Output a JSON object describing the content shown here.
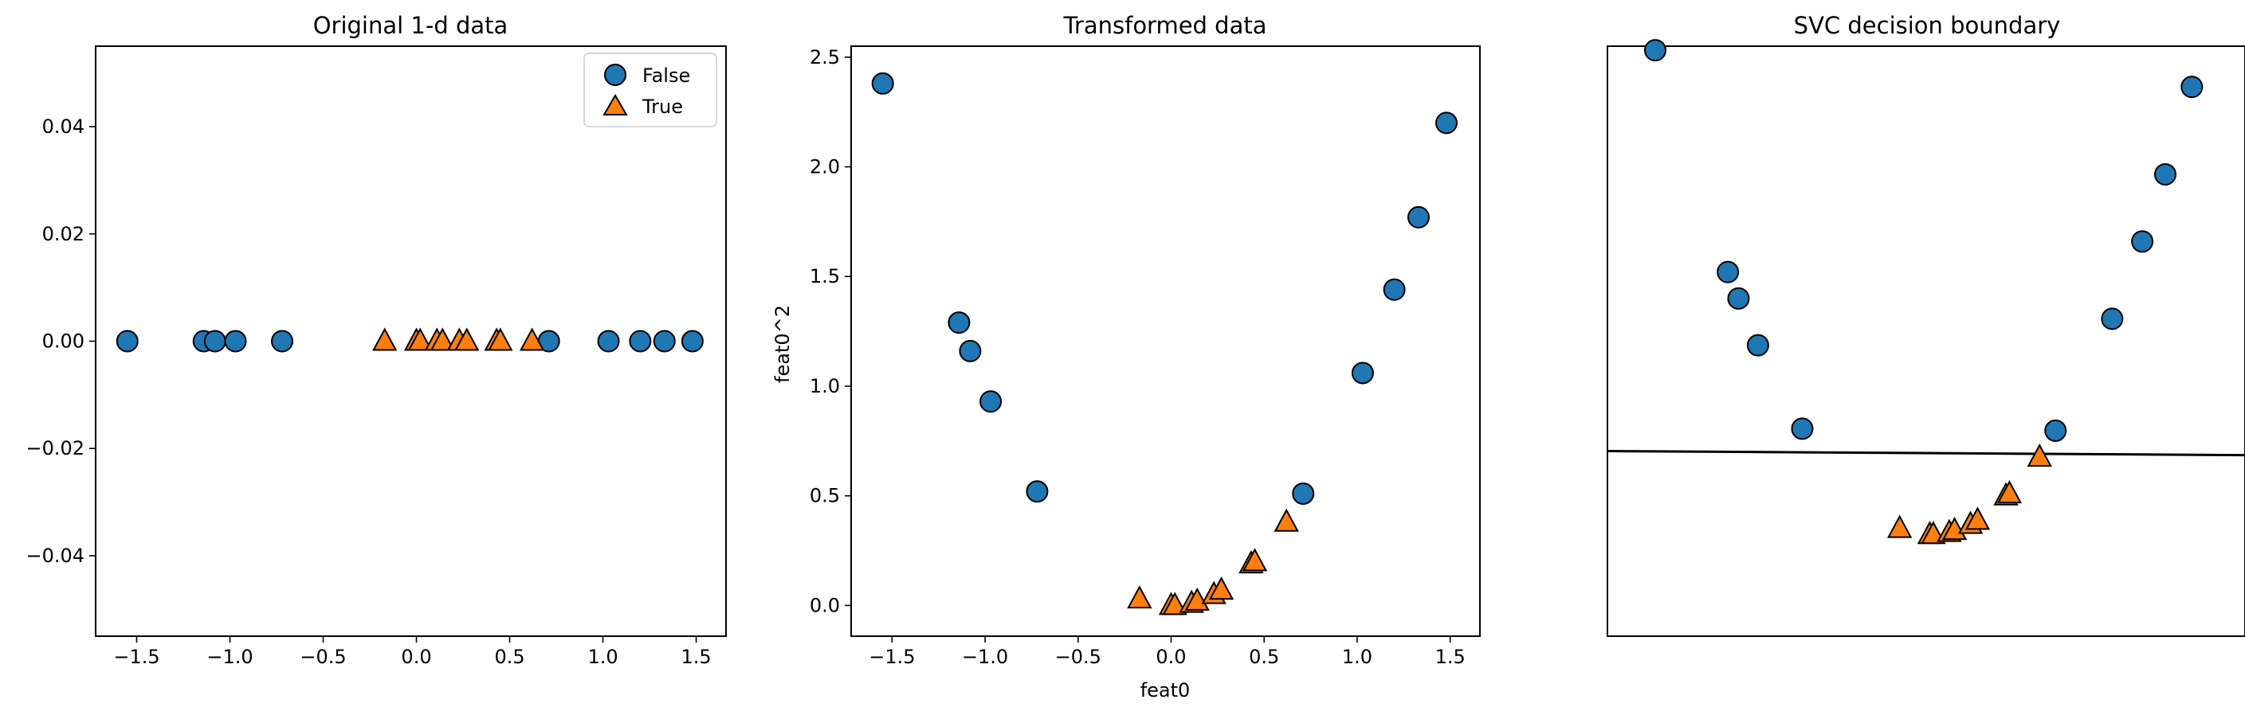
{
  "charts": {
    "original": {
      "title": "Original 1-d data",
      "legend": {
        "false_label": "False",
        "true_label": "True"
      }
    },
    "transformed": {
      "title": "Transformed data",
      "xlabel": "feat0",
      "ylabel": "feat0^2"
    },
    "svc": {
      "title": "SVC decision boundary"
    }
  },
  "chart_data": [
    {
      "type": "scatter",
      "title": "Original 1-d data",
      "xlabel": "",
      "ylabel": "",
      "xlim": [
        -1.72,
        1.66
      ],
      "ylim": [
        -0.055,
        0.055
      ],
      "xticks": [
        -1.5,
        -1.0,
        -0.5,
        0.0,
        0.5,
        1.0,
        1.5
      ],
      "xtick_labels": [
        "−1.5",
        "−1.0",
        "−0.5",
        "0.0",
        "0.5",
        "1.0",
        "1.5"
      ],
      "yticks": [
        -0.04,
        -0.02,
        0.0,
        0.02,
        0.04
      ],
      "ytick_labels": [
        "−0.04",
        "−0.02",
        "0.00",
        "0.02",
        "0.04"
      ],
      "legend_position": "top-right",
      "series": [
        {
          "name": "False",
          "marker": "circle",
          "color": "#1f77b4",
          "x": [
            -1.55,
            -1.14,
            -1.08,
            -0.97,
            -0.72,
            0.71,
            1.03,
            1.2,
            1.33,
            1.48
          ],
          "y": [
            0,
            0,
            0,
            0,
            0,
            0,
            0,
            0,
            0,
            0
          ]
        },
        {
          "name": "True",
          "marker": "triangle",
          "color": "#ff7f0e",
          "x": [
            -0.17,
            0.0,
            0.02,
            0.11,
            0.14,
            0.23,
            0.27,
            0.43,
            0.45,
            0.62
          ],
          "y": [
            0,
            0,
            0,
            0,
            0,
            0,
            0,
            0,
            0,
            0
          ]
        }
      ]
    },
    {
      "type": "scatter",
      "title": "Transformed data",
      "xlabel": "feat0",
      "ylabel": "feat0^2",
      "xlim": [
        -1.72,
        1.66
      ],
      "ylim": [
        -0.14,
        2.55
      ],
      "xticks": [
        -1.5,
        -1.0,
        -0.5,
        0.0,
        0.5,
        1.0,
        1.5
      ],
      "xtick_labels": [
        "−1.5",
        "−1.0",
        "−0.5",
        "0.0",
        "0.5",
        "1.0",
        "1.5"
      ],
      "yticks": [
        0.0,
        0.5,
        1.0,
        1.5,
        2.0,
        2.5
      ],
      "ytick_labels": [
        "0.0",
        "0.5",
        "1.0",
        "1.5",
        "2.0",
        "2.5"
      ],
      "series": [
        {
          "name": "",
          "marker": "circle",
          "color": "#1f77b4",
          "x": [
            -1.55,
            -1.14,
            -1.08,
            -0.97,
            -0.72,
            0.71,
            1.03,
            1.2,
            1.33,
            1.48
          ],
          "y": [
            2.38,
            1.29,
            1.16,
            0.93,
            0.52,
            0.51,
            1.06,
            1.44,
            1.77,
            2.2
          ]
        },
        {
          "name": "",
          "marker": "triangle",
          "color": "#ff7f0e",
          "x": [
            -0.17,
            0.0,
            0.02,
            0.11,
            0.14,
            0.23,
            0.27,
            0.43,
            0.45,
            0.62
          ],
          "y": [
            0.03,
            0.0,
            0.0,
            0.01,
            0.02,
            0.05,
            0.07,
            0.19,
            0.2,
            0.38
          ]
        }
      ]
    },
    {
      "type": "scatter",
      "title": "SVC decision boundary",
      "xlabel": "",
      "ylabel": "",
      "xlim": [
        -1.82,
        1.78
      ],
      "ylim": [
        -0.5,
        2.4
      ],
      "axes_visible": false,
      "series": [
        {
          "name": "",
          "marker": "circle",
          "color": "#1f77b4",
          "x": [
            -1.55,
            -1.14,
            -1.08,
            -0.97,
            -0.72,
            0.71,
            1.03,
            1.2,
            1.33,
            1.48
          ],
          "y": [
            2.38,
            1.29,
            1.16,
            0.93,
            0.52,
            0.51,
            1.06,
            1.44,
            1.77,
            2.2
          ]
        },
        {
          "name": "",
          "marker": "triangle",
          "color": "#ff7f0e",
          "x": [
            -0.17,
            0.0,
            0.02,
            0.11,
            0.14,
            0.23,
            0.27,
            0.43,
            0.45,
            0.62
          ],
          "y": [
            0.03,
            0.0,
            0.0,
            0.01,
            0.02,
            0.05,
            0.07,
            0.19,
            0.2,
            0.38
          ]
        }
      ],
      "decision_boundary": {
        "x": [
          -1.82,
          1.78
        ],
        "y": [
          0.41,
          0.39
        ],
        "color": "#000000"
      }
    }
  ]
}
